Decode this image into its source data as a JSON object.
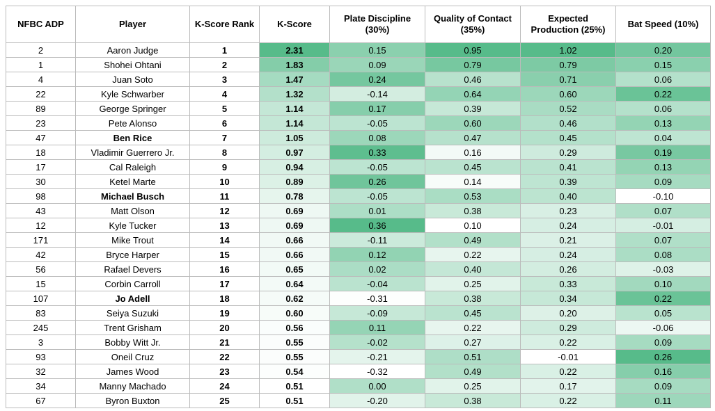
{
  "table": {
    "header": [
      "NFBC ADP",
      "Player",
      "K-Score Rank",
      "K-Score",
      "Plate Discipline (30%)",
      "Quality of Contact (35%)",
      "Expected Production (25%)",
      "Bat Speed (10%)"
    ],
    "heatmap_color": "#57bb8a",
    "rows": [
      {
        "cells": [
          "2",
          "Aaron Judge",
          "1",
          "2.31",
          "0.15",
          "0.95",
          "1.02",
          "0.20"
        ]
      },
      {
        "cells": [
          "1",
          "Shohei Ohtani",
          "2",
          "1.83",
          "0.09",
          "0.79",
          "0.79",
          "0.15"
        ]
      },
      {
        "cells": [
          "4",
          "Juan Soto",
          "3",
          "1.47",
          "0.24",
          "0.46",
          "0.71",
          "0.06"
        ]
      },
      {
        "cells": [
          "22",
          "Kyle Schwarber",
          "4",
          "1.32",
          "-0.14",
          "0.64",
          "0.60",
          "0.22"
        ]
      },
      {
        "cells": [
          "89",
          "George Springer",
          "5",
          "1.14",
          "0.17",
          "0.39",
          "0.52",
          "0.06"
        ]
      },
      {
        "cells": [
          "23",
          "Pete Alonso",
          "6",
          "1.14",
          "-0.05",
          "0.60",
          "0.46",
          "0.13"
        ]
      },
      {
        "cells": [
          "47",
          "Ben Rice",
          "7",
          "1.05",
          "0.08",
          "0.47",
          "0.45",
          "0.04"
        ],
        "bold": true
      },
      {
        "cells": [
          "18",
          "Vladimir Guerrero Jr.",
          "8",
          "0.97",
          "0.33",
          "0.16",
          "0.29",
          "0.19"
        ]
      },
      {
        "cells": [
          "17",
          "Cal Raleigh",
          "9",
          "0.94",
          "-0.05",
          "0.45",
          "0.41",
          "0.13"
        ]
      },
      {
        "cells": [
          "30",
          "Ketel Marte",
          "10",
          "0.89",
          "0.26",
          "0.14",
          "0.39",
          "0.09"
        ]
      },
      {
        "cells": [
          "98",
          "Michael Busch",
          "11",
          "0.78",
          "-0.05",
          "0.53",
          "0.40",
          "-0.10"
        ],
        "bold": true
      },
      {
        "cells": [
          "43",
          "Matt Olson",
          "12",
          "0.69",
          "0.01",
          "0.38",
          "0.23",
          "0.07"
        ]
      },
      {
        "cells": [
          "12",
          "Kyle Tucker",
          "13",
          "0.69",
          "0.36",
          "0.10",
          "0.24",
          "-0.01"
        ]
      },
      {
        "cells": [
          "171",
          "Mike Trout",
          "14",
          "0.66",
          "-0.11",
          "0.49",
          "0.21",
          "0.07"
        ]
      },
      {
        "cells": [
          "42",
          "Bryce Harper",
          "15",
          "0.66",
          "0.12",
          "0.22",
          "0.24",
          "0.08"
        ]
      },
      {
        "cells": [
          "56",
          "Rafael Devers",
          "16",
          "0.65",
          "0.02",
          "0.40",
          "0.26",
          "-0.03"
        ]
      },
      {
        "cells": [
          "15",
          "Corbin Carroll",
          "17",
          "0.64",
          "-0.04",
          "0.25",
          "0.33",
          "0.10"
        ]
      },
      {
        "cells": [
          "107",
          "Jo Adell",
          "18",
          "0.62",
          "-0.31",
          "0.38",
          "0.34",
          "0.22"
        ],
        "bold": true
      },
      {
        "cells": [
          "83",
          "Seiya Suzuki",
          "19",
          "0.60",
          "-0.09",
          "0.45",
          "0.20",
          "0.05"
        ]
      },
      {
        "cells": [
          "245",
          "Trent Grisham",
          "20",
          "0.56",
          "0.11",
          "0.22",
          "0.29",
          "-0.06"
        ]
      },
      {
        "cells": [
          "3",
          "Bobby Witt Jr.",
          "21",
          "0.55",
          "-0.02",
          "0.27",
          "0.22",
          "0.09"
        ]
      },
      {
        "cells": [
          "93",
          "Oneil Cruz",
          "22",
          "0.55",
          "-0.21",
          "0.51",
          "-0.01",
          "0.26"
        ]
      },
      {
        "cells": [
          "32",
          "James Wood",
          "23",
          "0.54",
          "-0.32",
          "0.49",
          "0.22",
          "0.16"
        ]
      },
      {
        "cells": [
          "34",
          "Manny Machado",
          "24",
          "0.51",
          "0.00",
          "0.25",
          "0.17",
          "0.09"
        ]
      },
      {
        "cells": [
          "67",
          "Byron Buxton",
          "25",
          "0.51",
          "-0.20",
          "0.38",
          "0.22",
          "0.11"
        ]
      }
    ]
  }
}
